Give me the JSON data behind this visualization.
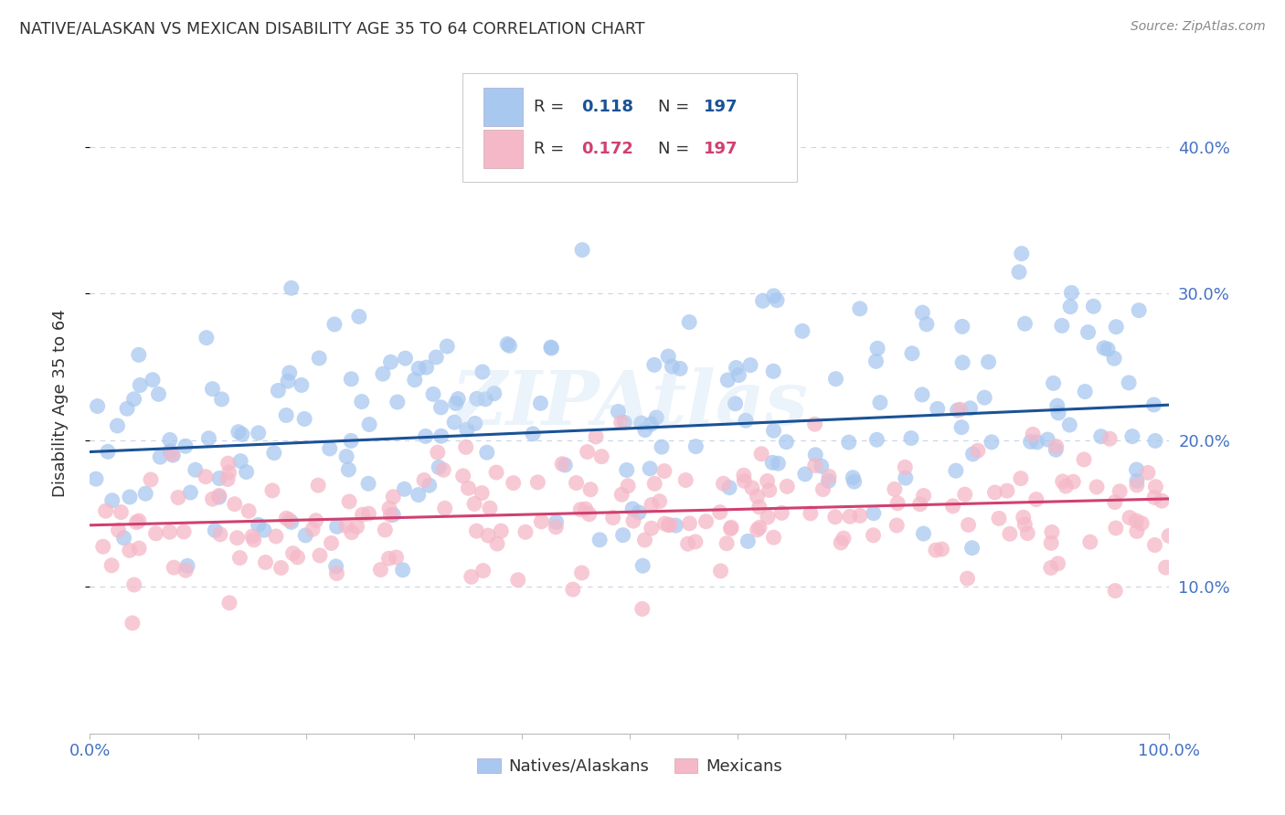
{
  "title": "NATIVE/ALASKAN VS MEXICAN DISABILITY AGE 35 TO 64 CORRELATION CHART",
  "source": "Source: ZipAtlas.com",
  "ylabel": "Disability Age 35 to 64",
  "blue_R": 0.118,
  "blue_N": 197,
  "pink_R": 0.172,
  "pink_N": 197,
  "blue_color": "#a8c8f0",
  "pink_color": "#f5b8c8",
  "blue_line_color": "#1a5296",
  "pink_line_color": "#d04070",
  "title_color": "#303030",
  "axis_label_color": "#303030",
  "right_axis_color": "#4472c4",
  "y_ticks": [
    0.1,
    0.2,
    0.3,
    0.4
  ],
  "y_tick_labels": [
    "10.0%",
    "20.0%",
    "30.0%",
    "40.0%"
  ],
  "x_lim": [
    0.0,
    1.0
  ],
  "y_lim": [
    0.0,
    0.45
  ],
  "blue_intercept": 0.192,
  "blue_slope": 0.032,
  "pink_intercept": 0.142,
  "pink_slope": 0.018,
  "background_color": "#ffffff",
  "grid_color": "#c8d4e8",
  "watermark": "ZIPAtlas",
  "legend_text_color": "#303030",
  "legend_blue_val_color": "#1a5296",
  "legend_pink_val_color": "#d04070"
}
